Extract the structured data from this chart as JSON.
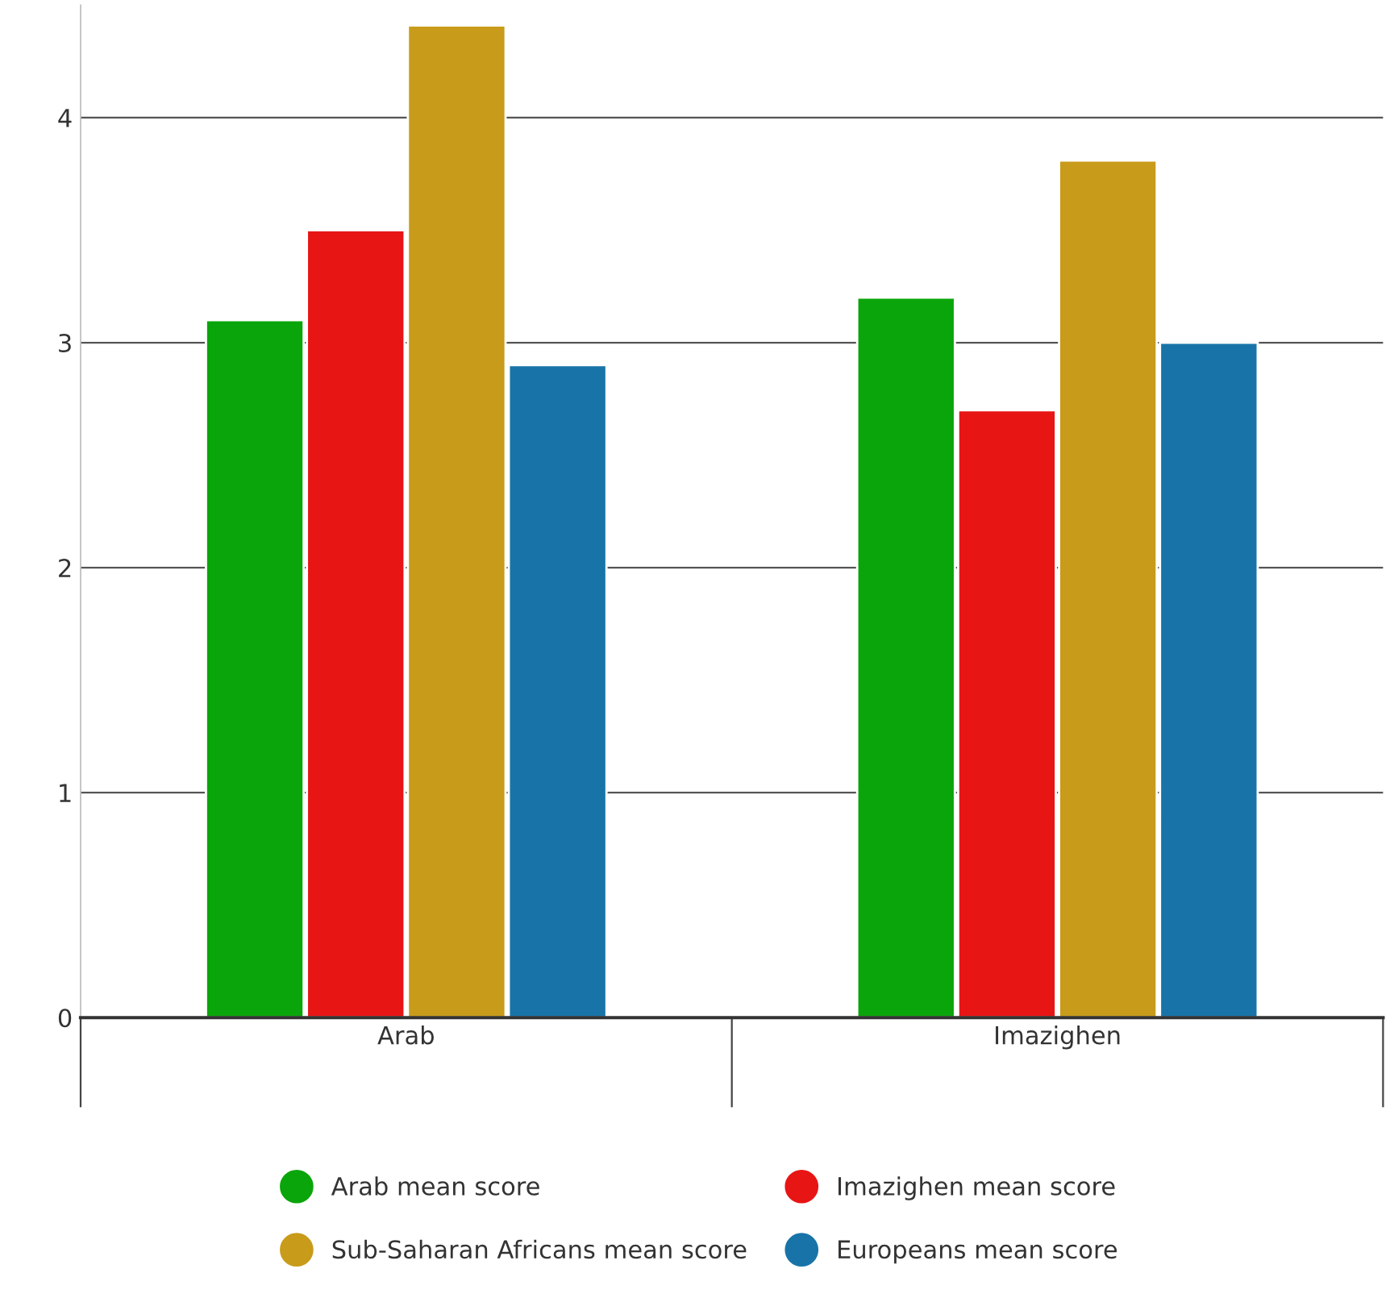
{
  "chart_data": {
    "type": "bar",
    "categories": [
      "Arab",
      "Imazighen"
    ],
    "series": [
      {
        "name": "Arab mean score",
        "color": "#0aa50a",
        "values": [
          3.1,
          3.2
        ]
      },
      {
        "name": "Imazighen mean score",
        "color": "#e81515",
        "values": [
          3.5,
          2.7
        ]
      },
      {
        "name": "Sub-Saharan Africans mean score",
        "color": "#c89b1a",
        "values": [
          4.41,
          3.81
        ]
      },
      {
        "name": "Europeans mean score",
        "color": "#1874a8",
        "values": [
          2.9,
          3.0
        ]
      }
    ],
    "ylim": [
      0,
      4.5
    ],
    "yticks": [
      0,
      1,
      2,
      3,
      4
    ],
    "grid": "y",
    "legend": "bottom"
  }
}
